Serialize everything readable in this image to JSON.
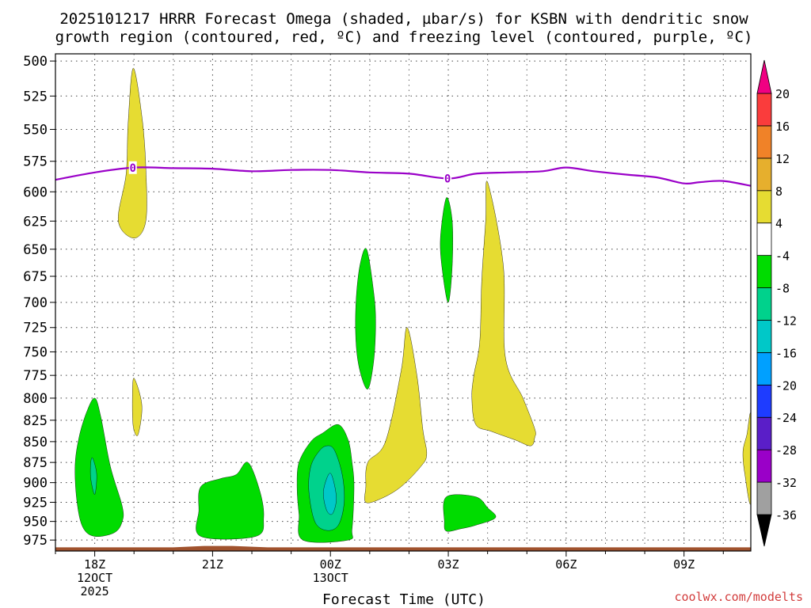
{
  "chart_data": {
    "type": "heatmap",
    "title_lines": [
      "2025101217 HRRR Forecast Omega (shaded, µbar/s) for KSBN with dendritic snow",
      "growth region (contoured, red, ºC) and freezing level (contoured, purple, ºC)"
    ],
    "xlabel": "Forecast Time (UTC)",
    "credit": "coolwx.com/modelts",
    "y_axis": {
      "unit": "hPa",
      "ticks": [
        500,
        525,
        550,
        575,
        600,
        625,
        650,
        675,
        700,
        725,
        750,
        775,
        800,
        825,
        850,
        875,
        900,
        925,
        950,
        975
      ],
      "range": [
        495,
        990
      ],
      "inverted_log": true
    },
    "x_axis": {
      "unit": "hours since 12Z 12 Oct 2025",
      "range": [
        5,
        22.7
      ],
      "ticks": [
        {
          "t": 6,
          "lines": [
            "18Z",
            "12OCT",
            "2025"
          ]
        },
        {
          "t": 9,
          "lines": [
            "21Z"
          ]
        },
        {
          "t": 12,
          "lines": [
            "00Z",
            "13OCT"
          ]
        },
        {
          "t": 15,
          "lines": [
            "03Z"
          ]
        },
        {
          "t": 18,
          "lines": [
            "06Z"
          ]
        },
        {
          "t": 21,
          "lines": [
            "09Z"
          ]
        }
      ]
    },
    "colorbar": {
      "levels": [
        -36,
        -32,
        -28,
        -24,
        -20,
        -16,
        -12,
        -8,
        -4,
        4,
        8,
        12,
        16,
        20
      ],
      "colors": [
        "#000000",
        "#a0a0a0",
        "#9a00c8",
        "#5a1ec8",
        "#1e3cff",
        "#00a0ff",
        "#00c8c8",
        "#00d28c",
        "#00dc00",
        "#ffffff",
        "#e6dc32",
        "#e6af2d",
        "#f08228",
        "#fa3c3c",
        "#f00082"
      ]
    },
    "freezing_level": {
      "label": "0",
      "label_at_t": [
        6.97,
        14.98
      ],
      "t": [
        5.0,
        6.0,
        7.0,
        8.0,
        9.0,
        10.0,
        11.0,
        12.0,
        13.0,
        14.0,
        15.0,
        15.7,
        16.5,
        17.4,
        18.0,
        18.7,
        19.6,
        20.3,
        21.0,
        21.4,
        22.0,
        22.7
      ],
      "p": [
        590,
        584,
        580,
        580.5,
        581,
        583,
        582,
        582,
        584,
        585,
        589,
        585,
        584,
        583,
        580,
        583,
        586,
        588,
        593,
        592,
        591,
        595
      ]
    },
    "omega_regions": [
      {
        "level": "-8 to -4",
        "pts": [
          [
            6.0,
            800
          ],
          [
            6.15,
            820
          ],
          [
            6.4,
            880
          ],
          [
            6.7,
            930
          ],
          [
            6.7,
            950
          ],
          [
            6.5,
            965
          ],
          [
            6.0,
            970
          ],
          [
            5.7,
            958
          ],
          [
            5.55,
            925
          ],
          [
            5.5,
            880
          ],
          [
            5.6,
            845
          ],
          [
            5.8,
            815
          ]
        ]
      },
      {
        "level": "-12 to -8",
        "pts": [
          [
            5.95,
            870
          ],
          [
            6.05,
            890
          ],
          [
            6.0,
            915
          ],
          [
            5.9,
            895
          ],
          [
            5.9,
            875
          ]
        ]
      },
      {
        "level": "-8 to -4",
        "pts": [
          [
            8.7,
            905
          ],
          [
            9.2,
            895
          ],
          [
            9.6,
            890
          ],
          [
            9.9,
            875
          ],
          [
            10.2,
            910
          ],
          [
            10.3,
            945
          ],
          [
            10.1,
            970
          ],
          [
            8.7,
            970
          ],
          [
            8.65,
            935
          ]
        ]
      },
      {
        "level": "-8 to -4",
        "pts": [
          [
            11.8,
            840
          ],
          [
            12.2,
            830
          ],
          [
            12.45,
            848
          ],
          [
            12.55,
            875
          ],
          [
            12.6,
            905
          ],
          [
            12.55,
            960
          ],
          [
            12.45,
            975
          ],
          [
            11.3,
            975
          ],
          [
            11.2,
            940
          ],
          [
            11.15,
            905
          ],
          [
            11.2,
            875
          ],
          [
            11.5,
            850
          ]
        ]
      },
      {
        "level": "-12 to -8",
        "pts": [
          [
            11.9,
            855
          ],
          [
            12.1,
            860
          ],
          [
            12.3,
            890
          ],
          [
            12.35,
            925
          ],
          [
            12.2,
            955
          ],
          [
            11.9,
            962
          ],
          [
            11.6,
            950
          ],
          [
            11.45,
            910
          ],
          [
            11.5,
            880
          ],
          [
            11.7,
            862
          ]
        ]
      },
      {
        "level": "-16 to -12",
        "pts": [
          [
            11.95,
            890
          ],
          [
            12.05,
            893
          ],
          [
            12.15,
            920
          ],
          [
            12.05,
            940
          ],
          [
            11.9,
            935
          ],
          [
            11.82,
            912
          ]
        ]
      },
      {
        "level": "-8 to -4",
        "pts": [
          [
            12.92,
            650
          ],
          [
            13.1,
            690
          ],
          [
            13.15,
            720
          ],
          [
            13.1,
            760
          ],
          [
            12.95,
            790
          ],
          [
            12.75,
            770
          ],
          [
            12.65,
            740
          ],
          [
            12.65,
            700
          ],
          [
            12.75,
            665
          ]
        ]
      },
      {
        "level": "-8 to -4",
        "pts": [
          [
            14.95,
            605
          ],
          [
            15.1,
            625
          ],
          [
            15.1,
            665
          ],
          [
            15.0,
            700
          ],
          [
            14.85,
            670
          ],
          [
            14.8,
            640
          ]
        ]
      },
      {
        "level": "-8 to -4",
        "pts": [
          [
            14.95,
            918
          ],
          [
            15.7,
            918
          ],
          [
            16.0,
            932
          ],
          [
            16.2,
            945
          ],
          [
            15.7,
            955
          ],
          [
            15.3,
            960
          ],
          [
            14.95,
            963
          ],
          [
            14.9,
            950
          ]
        ]
      }
    ],
    "omega_positive_regions": [
      {
        "level": "4 to 8",
        "pts": [
          [
            6.98,
            505
          ],
          [
            7.2,
            540
          ],
          [
            7.3,
            580
          ],
          [
            7.3,
            625
          ],
          [
            7.0,
            640
          ],
          [
            6.6,
            625
          ],
          [
            6.8,
            585
          ],
          [
            6.85,
            545
          ]
        ]
      },
      {
        "level": "4 to 8",
        "pts": [
          [
            7.0,
            778
          ],
          [
            7.2,
            808
          ],
          [
            7.1,
            842
          ],
          [
            6.98,
            832
          ],
          [
            6.96,
            800
          ]
        ]
      },
      {
        "level": "4 to 8",
        "pts": [
          [
            13.95,
            725
          ],
          [
            14.2,
            775
          ],
          [
            14.35,
            835
          ],
          [
            14.45,
            865
          ],
          [
            14.3,
            880
          ],
          [
            13.8,
            905
          ],
          [
            13.3,
            920
          ],
          [
            12.9,
            925
          ],
          [
            12.9,
            905
          ],
          [
            12.95,
            875
          ],
          [
            13.4,
            850
          ],
          [
            13.8,
            770
          ]
        ]
      },
      {
        "level": "4 to 8",
        "pts": [
          [
            16.0,
            592
          ],
          [
            16.4,
            665
          ],
          [
            16.45,
            755
          ],
          [
            16.9,
            800
          ],
          [
            17.2,
            835
          ],
          [
            17.2,
            845
          ],
          [
            17.1,
            855
          ],
          [
            16.7,
            848
          ],
          [
            16.1,
            838
          ],
          [
            15.7,
            830
          ],
          [
            15.6,
            800
          ],
          [
            15.65,
            775
          ],
          [
            15.8,
            740
          ],
          [
            15.85,
            680
          ],
          [
            15.95,
            625
          ]
        ]
      },
      {
        "level": "4 to 8",
        "pts": [
          [
            22.7,
            820
          ],
          [
            22.7,
            925
          ],
          [
            22.55,
            890
          ],
          [
            22.5,
            862
          ],
          [
            22.6,
            842
          ]
        ]
      }
    ],
    "surface_terrain": {
      "t": [
        5.0,
        8.0,
        8.8,
        9.5,
        10.4,
        13.0,
        20.0,
        22.7
      ],
      "p": [
        985,
        985,
        983,
        983,
        985,
        985,
        985,
        985
      ],
      "bottom": 990
    }
  }
}
